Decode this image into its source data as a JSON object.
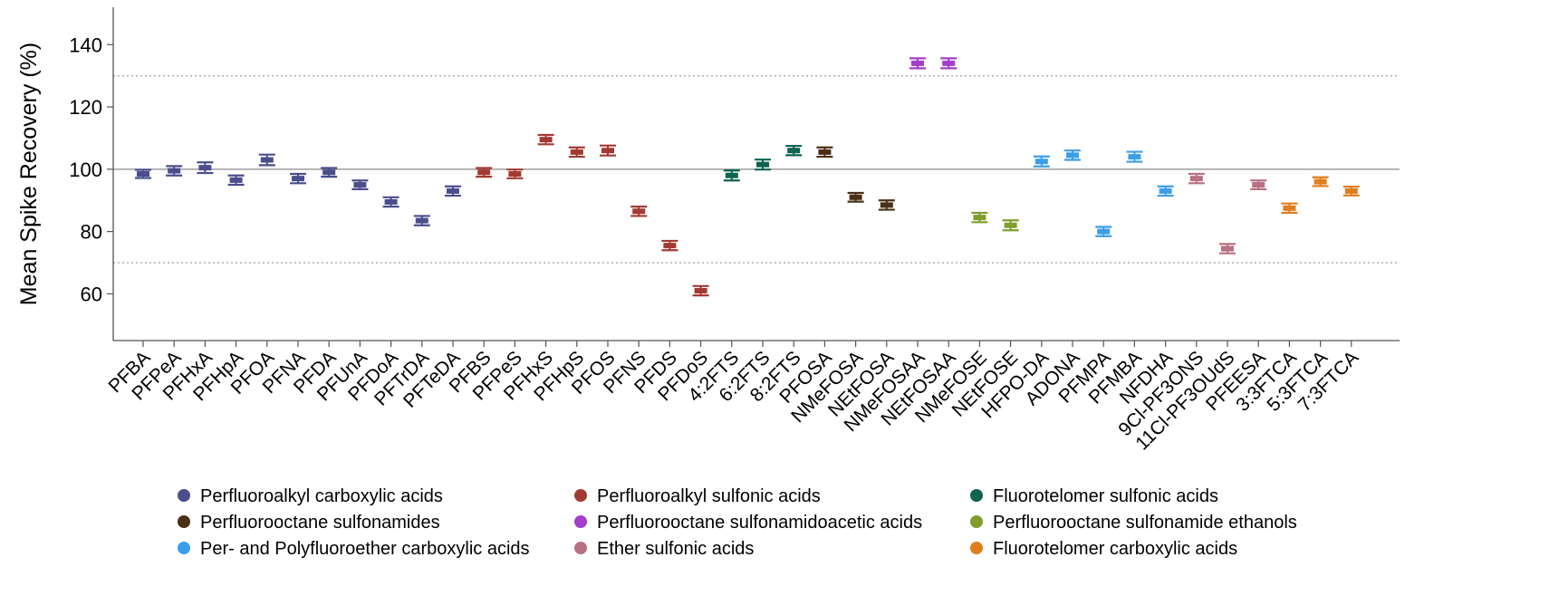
{
  "chart_data": {
    "type": "scatter",
    "title": "",
    "xlabel": "",
    "ylabel": "Mean Spike Recovery (%)",
    "ylim": [
      45,
      152
    ],
    "yticks": [
      60,
      80,
      100,
      120,
      140
    ],
    "reference_lines": [
      {
        "y": 100,
        "style": "solid"
      },
      {
        "y": 70,
        "style": "dotted"
      },
      {
        "y": 130,
        "style": "dotted"
      }
    ],
    "grid": false,
    "legend_position": "bottom",
    "groups": [
      {
        "name": "Perfluoroalkyl carboxylic acids",
        "color": "#4A4E8C"
      },
      {
        "name": "Perfluoroalkyl sulfonic acids",
        "color": "#A33A32"
      },
      {
        "name": "Fluorotelomer sulfonic acids",
        "color": "#0E6450"
      },
      {
        "name": "Perfluorooctane sulfonamides",
        "color": "#4A3014"
      },
      {
        "name": "Perfluorooctane sulfonamidoacetic acids",
        "color": "#A43DCB"
      },
      {
        "name": "Perfluorooctane sulfonamide ethanols",
        "color": "#7F9E2E"
      },
      {
        "name": "Per- and Polyfluoroether carboxylic acids",
        "color": "#3B9EEB"
      },
      {
        "name": "Ether sulfonic acids",
        "color": "#B87084"
      },
      {
        "name": "Fluorotelomer carboxylic acids",
        "color": "#E07E1E"
      }
    ],
    "points": [
      {
        "label": "PFBA",
        "group": 0,
        "y": 98.5,
        "lo": 97.2,
        "hi": 99.8
      },
      {
        "label": "PFPeA",
        "group": 0,
        "y": 99.5,
        "lo": 98.0,
        "hi": 101.0
      },
      {
        "label": "PFHxA",
        "group": 0,
        "y": 100.5,
        "lo": 98.8,
        "hi": 102.2
      },
      {
        "label": "PFHpA",
        "group": 0,
        "y": 96.5,
        "lo": 95.0,
        "hi": 98.0
      },
      {
        "label": "PFOA",
        "group": 0,
        "y": 103.0,
        "lo": 101.3,
        "hi": 104.7
      },
      {
        "label": "PFNA",
        "group": 0,
        "y": 97.0,
        "lo": 95.5,
        "hi": 98.5
      },
      {
        "label": "PFDA",
        "group": 0,
        "y": 99.0,
        "lo": 97.6,
        "hi": 100.4
      },
      {
        "label": "PFUnA",
        "group": 0,
        "y": 95.0,
        "lo": 93.6,
        "hi": 96.4
      },
      {
        "label": "PFDoA",
        "group": 0,
        "y": 89.5,
        "lo": 88.0,
        "hi": 91.0
      },
      {
        "label": "PFTrDA",
        "group": 0,
        "y": 83.5,
        "lo": 82.0,
        "hi": 85.0
      },
      {
        "label": "PFTeDA",
        "group": 0,
        "y": 93.0,
        "lo": 91.5,
        "hi": 94.5
      },
      {
        "label": "PFBS",
        "group": 1,
        "y": 99.0,
        "lo": 97.6,
        "hi": 100.4
      },
      {
        "label": "PFPeS",
        "group": 1,
        "y": 98.5,
        "lo": 97.1,
        "hi": 99.9
      },
      {
        "label": "PFHxS",
        "group": 1,
        "y": 109.5,
        "lo": 108.0,
        "hi": 111.0
      },
      {
        "label": "PFHpS",
        "group": 1,
        "y": 105.5,
        "lo": 104.0,
        "hi": 107.0
      },
      {
        "label": "PFOS",
        "group": 1,
        "y": 106.0,
        "lo": 104.4,
        "hi": 107.6
      },
      {
        "label": "PFNS",
        "group": 1,
        "y": 86.5,
        "lo": 85.0,
        "hi": 88.0
      },
      {
        "label": "PFDS",
        "group": 1,
        "y": 75.5,
        "lo": 74.0,
        "hi": 77.0
      },
      {
        "label": "PFDoS",
        "group": 1,
        "y": 61.0,
        "lo": 59.5,
        "hi": 62.5
      },
      {
        "label": "4:2FTS",
        "group": 2,
        "y": 98.0,
        "lo": 96.4,
        "hi": 99.6
      },
      {
        "label": "6:2FTS",
        "group": 2,
        "y": 101.5,
        "lo": 99.9,
        "hi": 103.1
      },
      {
        "label": "8:2FTS",
        "group": 2,
        "y": 106.0,
        "lo": 104.5,
        "hi": 107.5
      },
      {
        "label": "PFOSA",
        "group": 3,
        "y": 105.5,
        "lo": 104.0,
        "hi": 107.0
      },
      {
        "label": "NMeFOSA",
        "group": 3,
        "y": 91.0,
        "lo": 89.6,
        "hi": 92.4
      },
      {
        "label": "NEtFOSA",
        "group": 3,
        "y": 88.5,
        "lo": 87.0,
        "hi": 90.0
      },
      {
        "label": "NMeFOSAA",
        "group": 4,
        "y": 134.0,
        "lo": 132.4,
        "hi": 135.6
      },
      {
        "label": "NEtFOSAA",
        "group": 4,
        "y": 134.0,
        "lo": 132.4,
        "hi": 135.6
      },
      {
        "label": "NMeFOSE",
        "group": 5,
        "y": 84.5,
        "lo": 83.0,
        "hi": 86.0
      },
      {
        "label": "NEtFOSE",
        "group": 5,
        "y": 82.0,
        "lo": 80.4,
        "hi": 83.6
      },
      {
        "label": "HFPO-DA",
        "group": 6,
        "y": 102.5,
        "lo": 100.9,
        "hi": 104.1
      },
      {
        "label": "ADONA",
        "group": 6,
        "y": 104.5,
        "lo": 103.0,
        "hi": 106.0
      },
      {
        "label": "PFMPA",
        "group": 6,
        "y": 80.0,
        "lo": 78.5,
        "hi": 81.5
      },
      {
        "label": "PFMBA",
        "group": 6,
        "y": 104.0,
        "lo": 102.4,
        "hi": 105.6
      },
      {
        "label": "NFDHA",
        "group": 6,
        "y": 93.0,
        "lo": 91.5,
        "hi": 94.5
      },
      {
        "label": "9Cl-PF3ONS",
        "group": 7,
        "y": 97.0,
        "lo": 95.5,
        "hi": 98.5
      },
      {
        "label": "11Cl-PF3OUdS",
        "group": 7,
        "y": 74.5,
        "lo": 73.0,
        "hi": 76.0
      },
      {
        "label": "PFEESA",
        "group": 7,
        "y": 95.0,
        "lo": 93.6,
        "hi": 96.4
      },
      {
        "label": "3:3FTCA",
        "group": 8,
        "y": 87.5,
        "lo": 86.0,
        "hi": 89.0
      },
      {
        "label": "5:3FTCA",
        "group": 8,
        "y": 96.0,
        "lo": 94.6,
        "hi": 97.4
      },
      {
        "label": "7:3FTCA",
        "group": 8,
        "y": 93.0,
        "lo": 91.6,
        "hi": 94.4
      }
    ]
  }
}
